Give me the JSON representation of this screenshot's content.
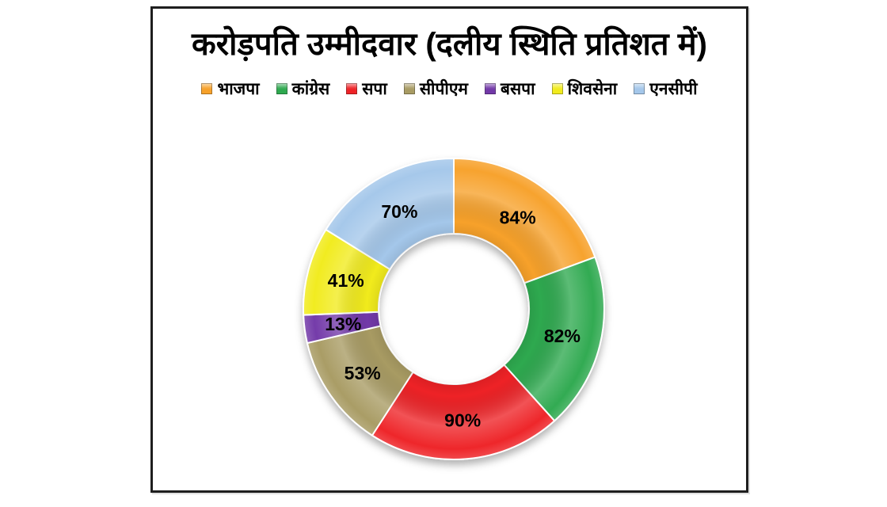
{
  "panel": {
    "background": "#ffffff",
    "border_color": "#1e1e1e"
  },
  "chart_data": {
    "type": "pie",
    "subtype": "donut",
    "title": "करोड़पति उम्मीदवार (दलीय स्थिति प्रतिशत में)",
    "legend_position": "top",
    "direction": "clockwise",
    "start_angle_deg": 0,
    "donut_hole_ratio": 0.5,
    "categories": [
      "भाजपा",
      "कांग्रेस",
      "सपा",
      "सीपीएम",
      "बसपा",
      "शिवसेना",
      "एनसीपी"
    ],
    "ids": [
      "bjp",
      "congress",
      "sp",
      "cpm",
      "bsp",
      "shivsena",
      "ncp"
    ],
    "values": [
      84,
      82,
      90,
      53,
      13,
      41,
      70
    ],
    "labels": [
      "84%",
      "82%",
      "90%",
      "53%",
      "13%",
      "41%",
      "70%"
    ],
    "colors": [
      "#F7A129",
      "#2EA94F",
      "#EE2226",
      "#A89B63",
      "#7238A8",
      "#F1EB1C",
      "#A4C7EA"
    ],
    "label_color": "#000000"
  }
}
